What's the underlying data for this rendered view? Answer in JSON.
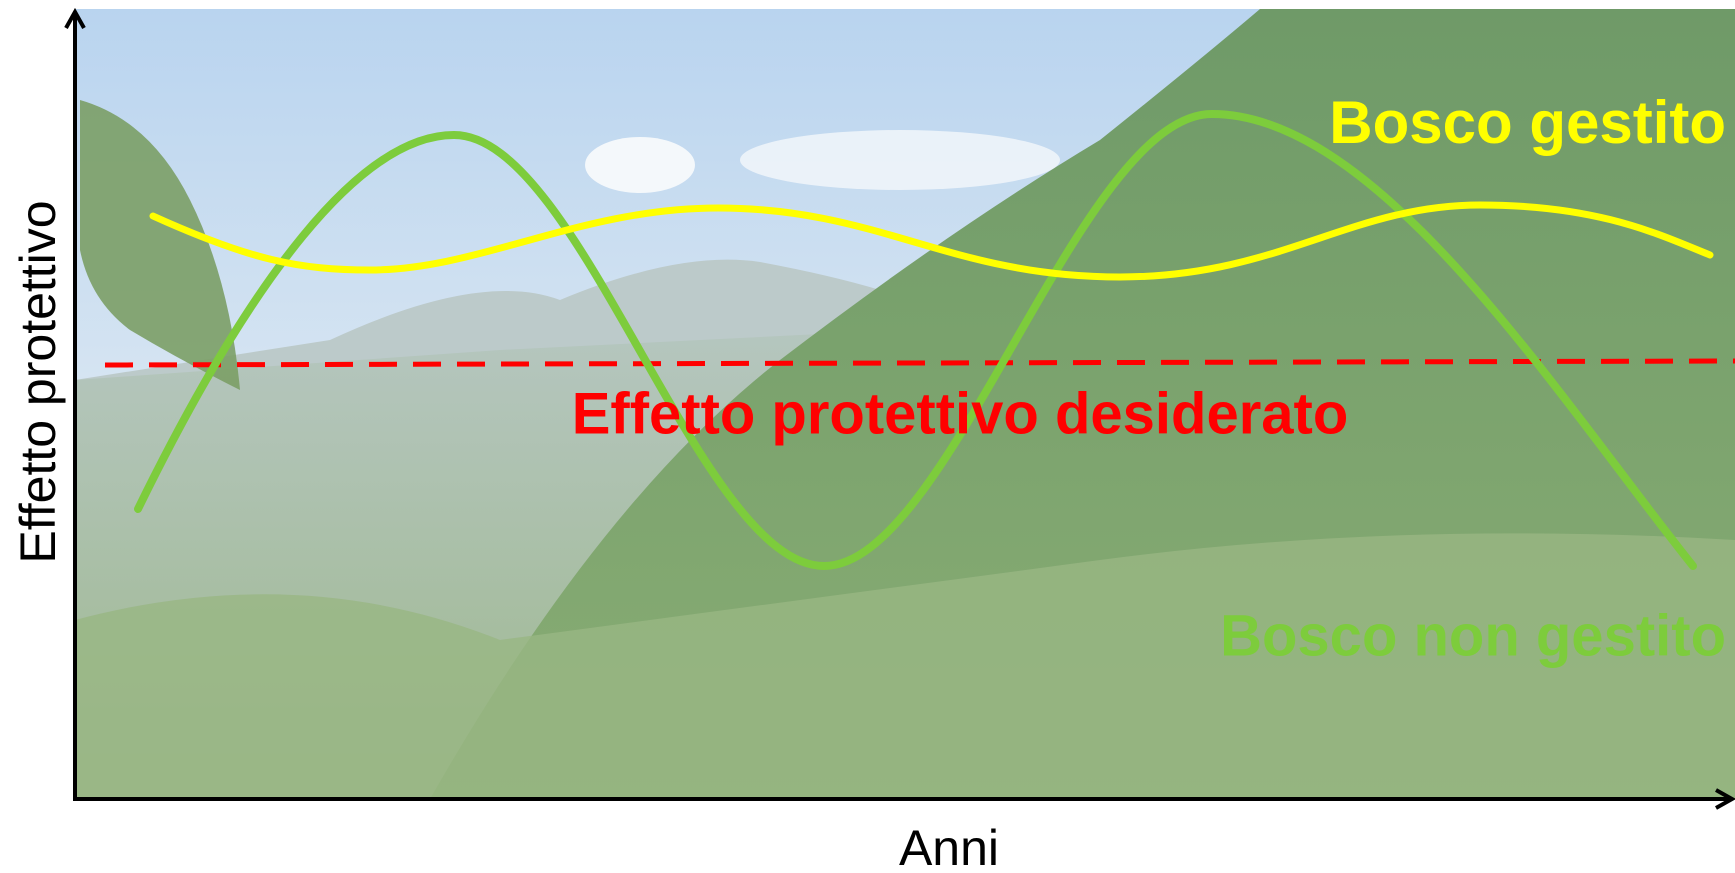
{
  "y_axis_label": "Effetto protettivo",
  "x_axis_label": "Anni",
  "managed_label": "Bosco gestito",
  "threshold_label": "Effetto protettivo desiderato",
  "unmanaged_label": "Bosco non gestito"
}
